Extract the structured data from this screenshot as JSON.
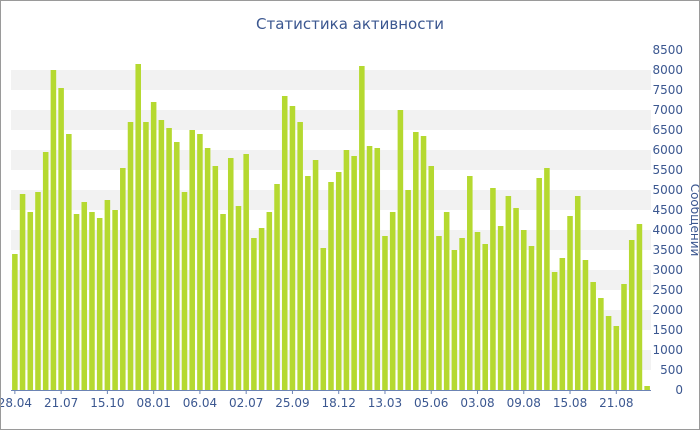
{
  "chart_data": {
    "type": "bar",
    "title": "Статистика активности",
    "xlabel": "",
    "ylabel": "Сообщений",
    "ylim": [
      0,
      8500
    ],
    "yticks": [
      0,
      500,
      1000,
      1500,
      2000,
      2500,
      3000,
      3500,
      4000,
      4500,
      5000,
      5500,
      6000,
      6500,
      7000,
      7500,
      8000,
      8500
    ],
    "x_tick_labels": [
      {
        "label": "28.04",
        "index": 0
      },
      {
        "label": "21.07",
        "index": 6
      },
      {
        "label": "15.10",
        "index": 12
      },
      {
        "label": "08.01",
        "index": 18
      },
      {
        "label": "06.04",
        "index": 24
      },
      {
        "label": "02.07",
        "index": 30
      },
      {
        "label": "25.09",
        "index": 36
      },
      {
        "label": "18.12",
        "index": 42
      },
      {
        "label": "13.03",
        "index": 48
      },
      {
        "label": "05.06",
        "index": 54
      },
      {
        "label": "03.08",
        "index": 60
      },
      {
        "label": "09.08",
        "index": 66
      },
      {
        "label": "15.08",
        "index": 72
      },
      {
        "label": "21.08",
        "index": 78
      }
    ],
    "values": [
      3400,
      4900,
      4450,
      4950,
      5950,
      8000,
      7550,
      6400,
      4400,
      4700,
      4450,
      4300,
      4750,
      4500,
      5550,
      6700,
      8150,
      6700,
      7200,
      6750,
      6550,
      6200,
      4950,
      6500,
      6400,
      6050,
      5600,
      4400,
      5800,
      4600,
      5900,
      3800,
      4050,
      4450,
      5150,
      7350,
      7100,
      6700,
      5350,
      5750,
      3550,
      5200,
      5450,
      6000,
      5850,
      8100,
      6100,
      6050,
      3850,
      4450,
      7000,
      5000,
      6450,
      6350,
      5600,
      3850,
      4450,
      3500,
      3800,
      5350,
      3950,
      3650,
      5050,
      4100,
      4850,
      4550,
      4000,
      3600,
      5300,
      5550,
      2950,
      3300,
      4350,
      4850,
      3250,
      2700,
      2300,
      1850,
      1600,
      2650,
      3750,
      4150,
      100
    ],
    "colors": {
      "bar": "#b5d930",
      "band": "#f2f2f2",
      "text": "#3b5790"
    },
    "grid": "horizontal-bands",
    "legend": "none"
  }
}
